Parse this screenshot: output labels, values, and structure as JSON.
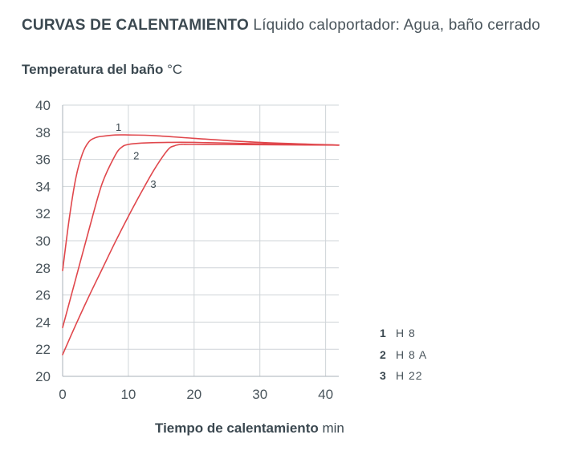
{
  "header": {
    "title": "CURVAS DE CALENTAMIENTO",
    "subtitle": "Líquido caloportador: Agua, baño cerrado"
  },
  "chart_data": {
    "type": "line",
    "ylabel": "Temperatura del baño",
    "yunit": "°C",
    "xlabel": "Tiempo de calentamiento",
    "xunit": "min",
    "xlim": [
      0,
      42
    ],
    "ylim": [
      20,
      40
    ],
    "xticks": [
      0,
      10,
      20,
      30,
      40
    ],
    "yticks": [
      20,
      22,
      24,
      26,
      28,
      30,
      32,
      34,
      36,
      38,
      40
    ],
    "grid": true,
    "line_color": "#e0474c",
    "series": [
      {
        "label": "1",
        "name": "H 8",
        "x": [
          0,
          1,
          2,
          3,
          4,
          5,
          6,
          8,
          10,
          14,
          20,
          30,
          42
        ],
        "y": [
          27.8,
          31.6,
          34.6,
          36.4,
          37.3,
          37.6,
          37.7,
          37.8,
          37.8,
          37.75,
          37.55,
          37.25,
          37.05
        ]
      },
      {
        "label": "2",
        "name": "H 8 A",
        "x": [
          0,
          2,
          4,
          6,
          8,
          9,
          10,
          12,
          16,
          20,
          30,
          42
        ],
        "y": [
          23.6,
          27.2,
          30.8,
          34.2,
          36.3,
          36.9,
          37.1,
          37.2,
          37.25,
          37.25,
          37.15,
          37.05
        ]
      },
      {
        "label": "3",
        "name": "H 22",
        "x": [
          0,
          2,
          4,
          6,
          8,
          10,
          12,
          14,
          16,
          17,
          18,
          20,
          30,
          42
        ],
        "y": [
          21.6,
          23.8,
          25.9,
          27.9,
          29.9,
          31.8,
          33.6,
          35.3,
          36.7,
          37.0,
          37.1,
          37.1,
          37.08,
          37.05
        ]
      }
    ],
    "curve_labels": [
      {
        "text": "1",
        "x": 8.5,
        "y": 38.4
      },
      {
        "text": "2",
        "x": 11.2,
        "y": 36.3
      },
      {
        "text": "3",
        "x": 13.8,
        "y": 34.2
      }
    ]
  }
}
